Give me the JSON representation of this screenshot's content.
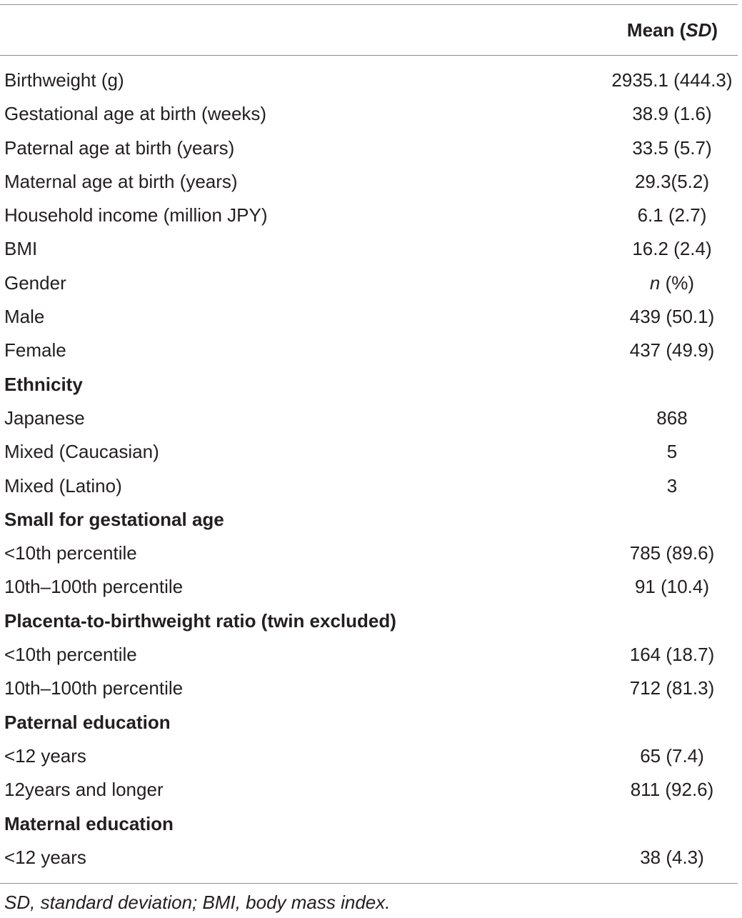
{
  "header": {
    "stat_prefix": "Mean (",
    "stat_sd": "SD",
    "stat_suffix": ")"
  },
  "rows": [
    {
      "label": "Birthweight (g)",
      "value": "2935.1 (444.3)",
      "section": false
    },
    {
      "label": "Gestational age at birth (weeks)",
      "value": "38.9 (1.6)",
      "section": false
    },
    {
      "label": "Paternal age at birth (years)",
      "value": "33.5 (5.7)",
      "section": false
    },
    {
      "label": "Maternal age at birth (years)",
      "value": "29.3(5.2)",
      "section": false
    },
    {
      "label": "Household income (million JPY)",
      "value": "6.1 (2.7)",
      "section": false
    },
    {
      "label": "BMI",
      "value": "16.2 (2.4)",
      "section": false
    },
    {
      "label": "Gender",
      "value_italic": "n",
      "value": " (%)",
      "section": false
    },
    {
      "label": "Male",
      "value": "439 (50.1)",
      "section": false
    },
    {
      "label": "Female",
      "value": "437 (49.9)",
      "section": false
    },
    {
      "label": "Ethnicity",
      "value": "",
      "section": true
    },
    {
      "label": "Japanese",
      "value": "868",
      "section": false
    },
    {
      "label": "Mixed (Caucasian)",
      "value": "5",
      "section": false
    },
    {
      "label": "Mixed (Latino)",
      "value": "3",
      "section": false
    },
    {
      "label": "Small for gestational age",
      "value": "",
      "section": true
    },
    {
      "label": "<10th percentile",
      "value": "785 (89.6)",
      "section": false
    },
    {
      "label": "10th–100th percentile",
      "value": "91 (10.4)",
      "section": false
    },
    {
      "label": "Placenta-to-birthweight ratio (twin excluded)",
      "value": "",
      "section": true
    },
    {
      "label": "<10th percentile",
      "value": "164 (18.7)",
      "section": false
    },
    {
      "label": "10th–100th percentile",
      "value": "712 (81.3)",
      "section": false
    },
    {
      "label": "Paternal education",
      "value": "",
      "section": true
    },
    {
      "label": "<12 years",
      "value": "65 (7.4)",
      "section": false
    },
    {
      "label": "12years and longer",
      "value": "811 (92.6)",
      "section": false
    },
    {
      "label": "Maternal education",
      "value": "",
      "section": true
    },
    {
      "label": "<12 years",
      "value": "38 (4.3)",
      "section": false
    }
  ],
  "footnote": "SD, standard deviation; BMI, body mass index."
}
